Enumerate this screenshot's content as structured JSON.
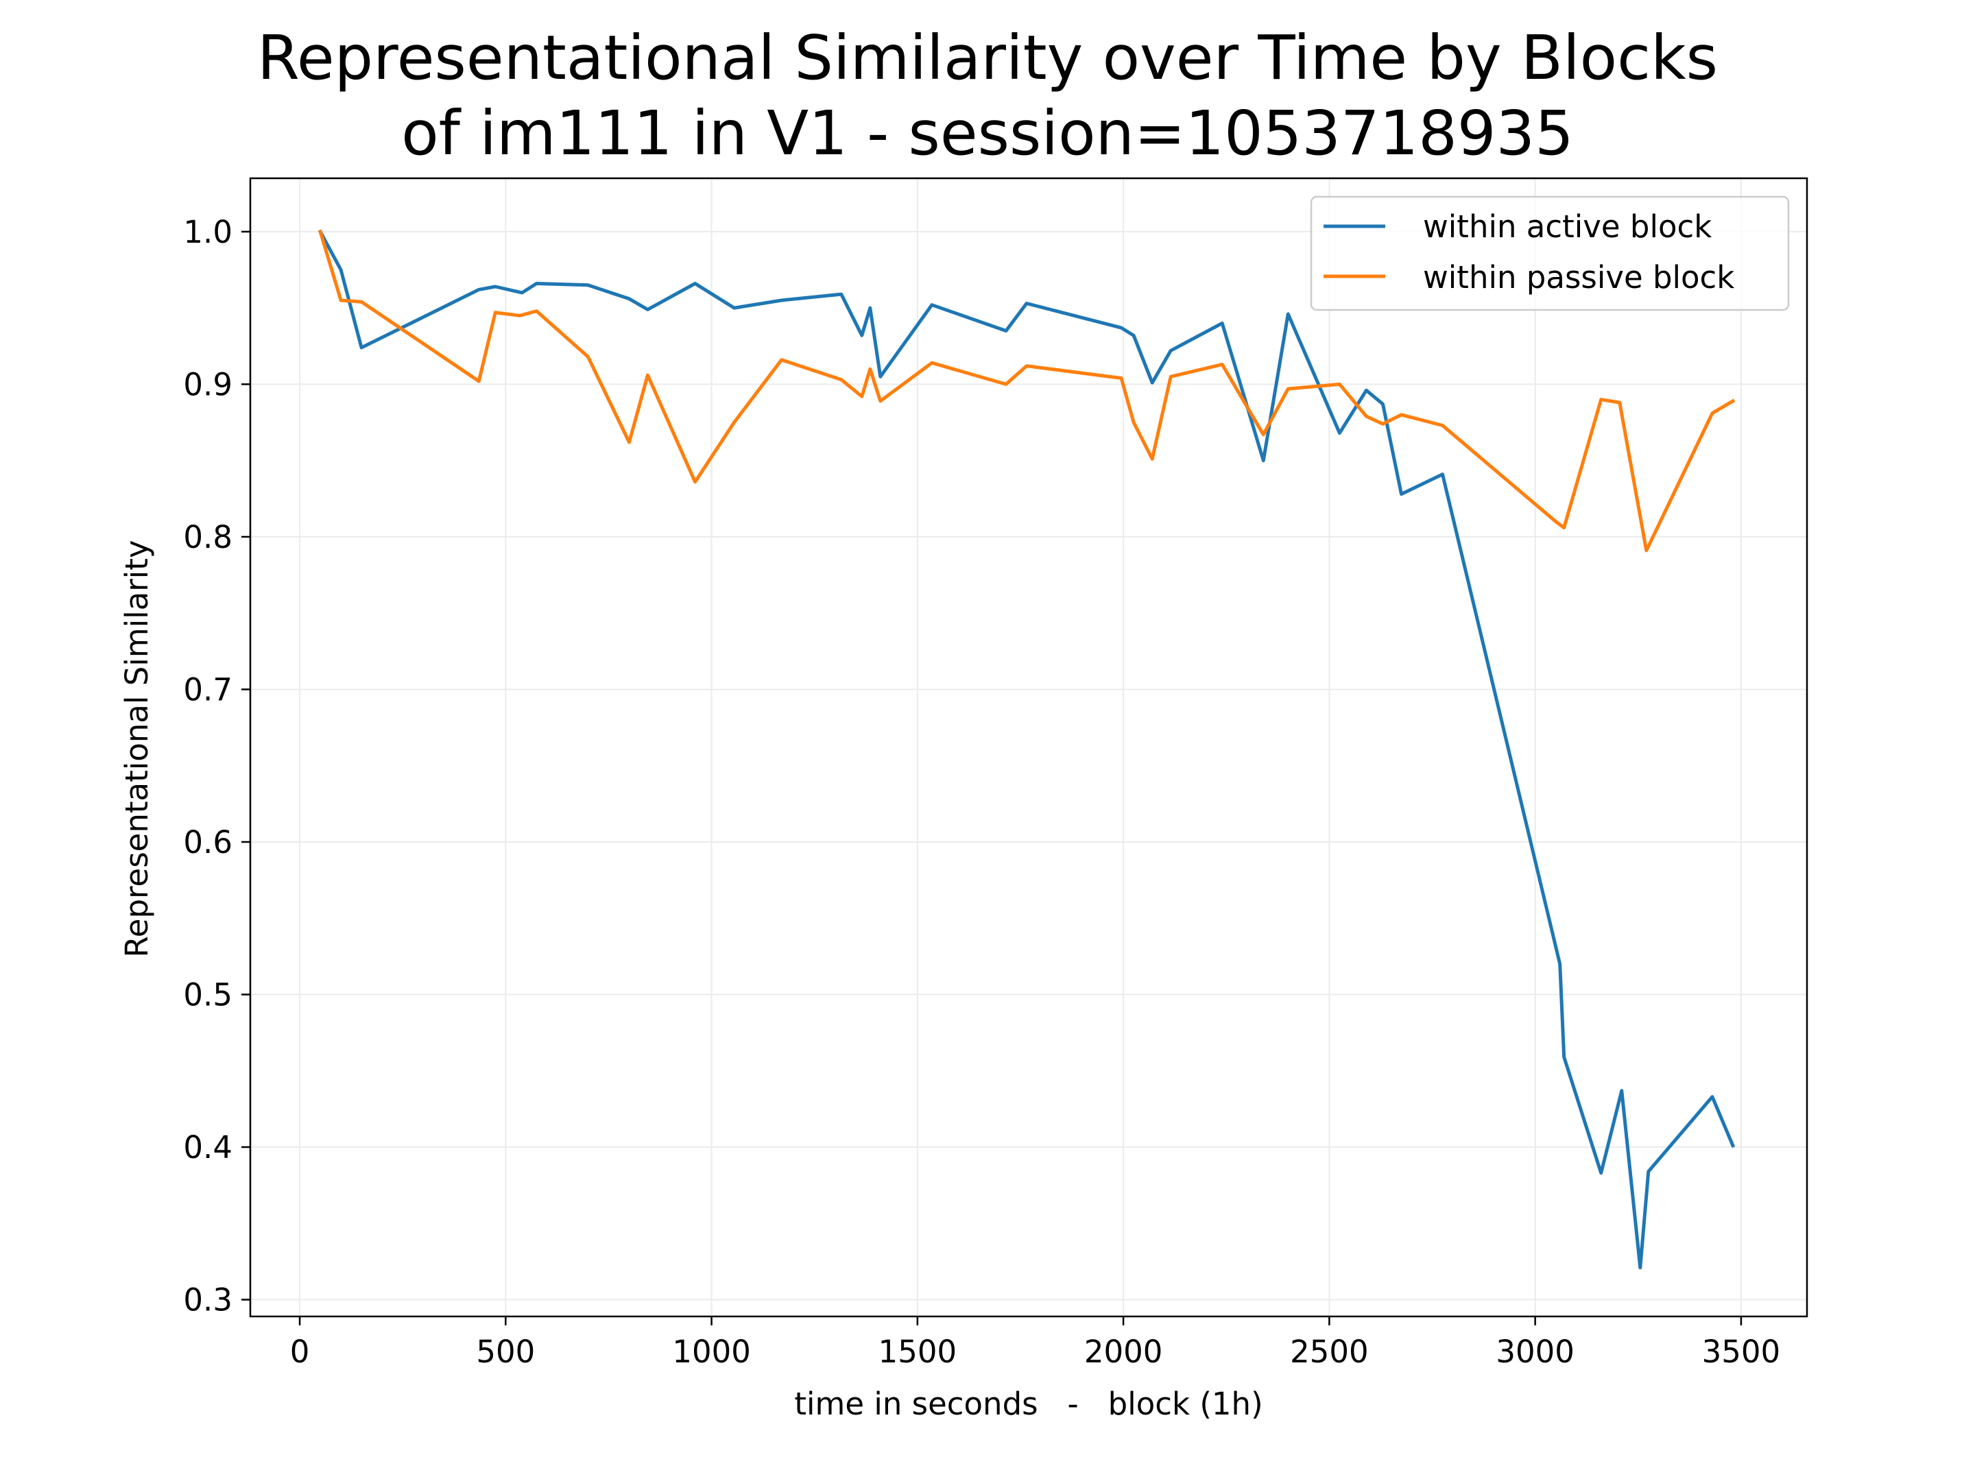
{
  "chart_data": {
    "type": "line",
    "title_lines": [
      "Representational Similarity over Time by Blocks",
      "of im111 in V1 - session=1053718935"
    ],
    "xlabel": "time in seconds   -   block (1h)",
    "ylabel": "Representational Similarity",
    "xlim": [
      -120,
      3660
    ],
    "ylim": [
      0.289,
      1.035
    ],
    "xticks": [
      0,
      500,
      1000,
      1500,
      2000,
      2500,
      3000,
      3500
    ],
    "yticks": [
      0.3,
      0.4,
      0.5,
      0.6,
      0.7,
      0.8,
      0.9,
      1.0
    ],
    "xtick_labels": [
      "0",
      "500",
      "1000",
      "1500",
      "2000",
      "2500",
      "3000",
      "3500"
    ],
    "ytick_labels": [
      "0.3",
      "0.4",
      "0.5",
      "0.6",
      "0.7",
      "0.8",
      "0.9",
      "1.0"
    ],
    "grid": true,
    "legend_position": "top-right",
    "series": [
      {
        "name": "within active block",
        "color": "#1f77b4",
        "x": [
          50,
          100,
          150,
          435,
          475,
          540,
          575,
          700,
          800,
          845,
          960,
          1055,
          1170,
          1315,
          1365,
          1385,
          1410,
          1535,
          1715,
          1765,
          1995,
          2025,
          2070,
          2115,
          2240,
          2340,
          2400,
          2525,
          2590,
          2630,
          2675,
          2775,
          3060,
          3070,
          3160,
          3210,
          3255,
          3275,
          3430,
          3480
        ],
        "y": [
          1.0,
          0.975,
          0.924,
          0.962,
          0.964,
          0.96,
          0.966,
          0.965,
          0.956,
          0.949,
          0.966,
          0.95,
          0.955,
          0.959,
          0.932,
          0.95,
          0.905,
          0.952,
          0.935,
          0.953,
          0.937,
          0.932,
          0.901,
          0.922,
          0.94,
          0.85,
          0.946,
          0.868,
          0.896,
          0.887,
          0.828,
          0.841,
          0.52,
          0.459,
          0.383,
          0.437,
          0.321,
          0.384,
          0.433,
          0.401
        ]
      },
      {
        "name": "within passive block",
        "color": "#ff7f0e",
        "x": [
          50,
          100,
          150,
          435,
          475,
          535,
          575,
          700,
          800,
          845,
          960,
          1055,
          1170,
          1315,
          1365,
          1385,
          1410,
          1535,
          1715,
          1765,
          1995,
          2025,
          2070,
          2115,
          2240,
          2340,
          2400,
          2525,
          2590,
          2630,
          2675,
          2775,
          3050,
          3070,
          3160,
          3205,
          3270,
          3430,
          3480
        ],
        "y": [
          1.0,
          0.955,
          0.954,
          0.902,
          0.947,
          0.945,
          0.948,
          0.918,
          0.862,
          0.906,
          0.836,
          0.875,
          0.916,
          0.903,
          0.892,
          0.91,
          0.889,
          0.914,
          0.9,
          0.912,
          0.904,
          0.875,
          0.851,
          0.905,
          0.913,
          0.867,
          0.897,
          0.9,
          0.879,
          0.874,
          0.88,
          0.873,
          0.81,
          0.806,
          0.89,
          0.888,
          0.791,
          0.881,
          0.889
        ]
      }
    ]
  }
}
